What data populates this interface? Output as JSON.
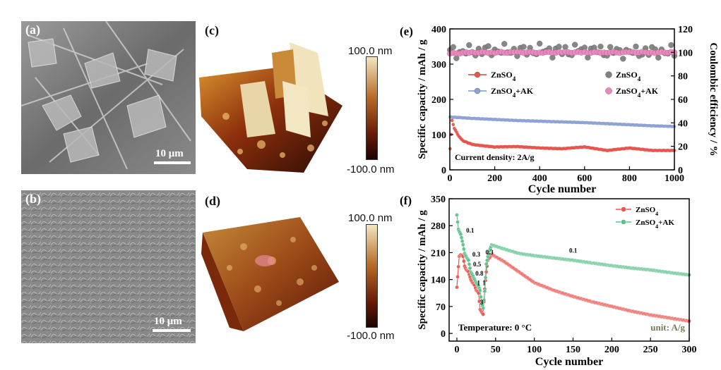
{
  "panels": {
    "a": {
      "label": "(a)",
      "scale": "10 μm"
    },
    "b": {
      "label": "(b)",
      "scale": "10 μm"
    },
    "c": {
      "label": "(c)",
      "cb_max": "100.0 nm",
      "cb_min": "-100.0 nm"
    },
    "d": {
      "label": "(d)",
      "cb_max": "100.0 nm",
      "cb_min": "-100.0 nm"
    },
    "e": {
      "label": "(e)"
    },
    "f": {
      "label": "(f)"
    }
  },
  "colors": {
    "red": "#e8554e",
    "blue": "#8fa2d6",
    "gray": "#808080",
    "pink": "#ef86c0",
    "green": "#5cc08c",
    "afm_dark": "#2a0a04",
    "afm_mid": "#a0420e",
    "afm_light": "#f3e6c2"
  },
  "chart_data": [
    {
      "id": "e",
      "type": "scatter",
      "title": "",
      "xlabel": "Cycle number",
      "ylabel": "Specific capacity / mAh / g",
      "y2label": "Coulombic efficiency / %",
      "xlim": [
        0,
        1000
      ],
      "ylim": [
        0,
        400
      ],
      "y2lim": [
        0,
        120
      ],
      "xticks": [
        0,
        200,
        400,
        600,
        800,
        1000
      ],
      "yticks": [
        0,
        100,
        200,
        300,
        400
      ],
      "y2ticks": [
        0,
        20,
        40,
        60,
        80,
        100,
        120
      ],
      "annotation": "Current density: 2A/g",
      "legend_left": [
        "ZnSO",
        "ZnSO+AK"
      ],
      "legend_right": [
        "ZnSO",
        "ZnSO+AK"
      ],
      "legend_sub": "4",
      "series": [
        {
          "name": "ZnSO4",
          "axis": "left",
          "color": "red",
          "x": [
            1,
            10,
            20,
            40,
            60,
            100,
            150,
            200,
            300,
            400,
            500,
            600,
            700,
            800,
            900,
            1000
          ],
          "y": [
            60,
            140,
            118,
            95,
            82,
            72,
            68,
            65,
            66,
            62,
            60,
            65,
            55,
            62,
            55,
            55
          ]
        },
        {
          "name": "ZnSO4+AK",
          "axis": "left",
          "color": "blue",
          "x": [
            1,
            50,
            100,
            200,
            300,
            400,
            500,
            600,
            700,
            800,
            900,
            1000
          ],
          "y": [
            150,
            148,
            146,
            143,
            140,
            138,
            136,
            134,
            131,
            128,
            125,
            123
          ]
        },
        {
          "name": "ZnSO4",
          "axis": "right",
          "color": "gray",
          "x": [
            1,
            100,
            200,
            300,
            400,
            500,
            600,
            700,
            800,
            900,
            1000
          ],
          "y": [
            100,
            101,
            102,
            101,
            102,
            101,
            102,
            101,
            100,
            101,
            100
          ]
        },
        {
          "name": "ZnSO4+AK",
          "axis": "right",
          "color": "pink",
          "x": [
            1,
            100,
            200,
            300,
            400,
            500,
            600,
            700,
            800,
            900,
            1000
          ],
          "y": [
            99,
            100,
            100,
            100,
            100,
            100,
            100,
            100,
            100,
            100,
            100
          ]
        }
      ]
    },
    {
      "id": "f",
      "type": "scatter",
      "title": "",
      "xlabel": "Cycle number",
      "ylabel": "Specific capacity / mAh / g",
      "xlim": [
        -10,
        300
      ],
      "ylim": [
        -20,
        350
      ],
      "xticks": [
        0,
        50,
        100,
        150,
        200,
        250,
        300
      ],
      "yticks": [
        0,
        70,
        140,
        210,
        280,
        350
      ],
      "annotation_left": "Temperature: 0 °C",
      "annotation_right": "unit: A/g",
      "legend": [
        "ZnSO",
        "ZnSO+AK"
      ],
      "legend_sub": "4",
      "rate_labels": [
        {
          "text": "0.1",
          "x": 12,
          "y": 262
        },
        {
          "text": "0.3",
          "x": 20,
          "y": 200
        },
        {
          "text": "0.5",
          "x": 21,
          "y": 174
        },
        {
          "text": "0.8",
          "x": 24,
          "y": 150
        },
        {
          "text": "1",
          "x": 26,
          "y": 126
        },
        {
          "text": "1",
          "x": 33,
          "y": 126
        },
        {
          "text": "3",
          "x": 30,
          "y": 75
        },
        {
          "text": "0.3",
          "x": 37,
          "y": 205
        },
        {
          "text": "0.1",
          "x": 145,
          "y": 210
        }
      ],
      "series": [
        {
          "name": "ZnSO4",
          "color": "red",
          "x": [
            0,
            3,
            5,
            8,
            10,
            12,
            15,
            18,
            20,
            23,
            25,
            27,
            28,
            30,
            32,
            34,
            36,
            38,
            40,
            45,
            60,
            80,
            100,
            125,
            150,
            175,
            200,
            225,
            250,
            275,
            300
          ],
          "y": [
            120,
            200,
            205,
            200,
            175,
            165,
            160,
            140,
            132,
            125,
            112,
            108,
            105,
            62,
            55,
            50,
            115,
            160,
            190,
            205,
            188,
            160,
            132,
            112,
            96,
            82,
            70,
            58,
            48,
            40,
            32
          ]
        },
        {
          "name": "ZnSO4+AK",
          "color": "green",
          "x": [
            0,
            2,
            5,
            8,
            10,
            13,
            15,
            18,
            20,
            23,
            25,
            28,
            30,
            32,
            34,
            36,
            38,
            40,
            42,
            45,
            60,
            80,
            100,
            125,
            150,
            175,
            200,
            225,
            250,
            275,
            300
          ],
          "y": [
            308,
            270,
            258,
            230,
            208,
            196,
            190,
            160,
            152,
            140,
            132,
            122,
            112,
            78,
            65,
            110,
            180,
            200,
            215,
            230,
            220,
            208,
            202,
            196,
            190,
            183,
            176,
            170,
            165,
            158,
            152
          ]
        }
      ]
    }
  ]
}
